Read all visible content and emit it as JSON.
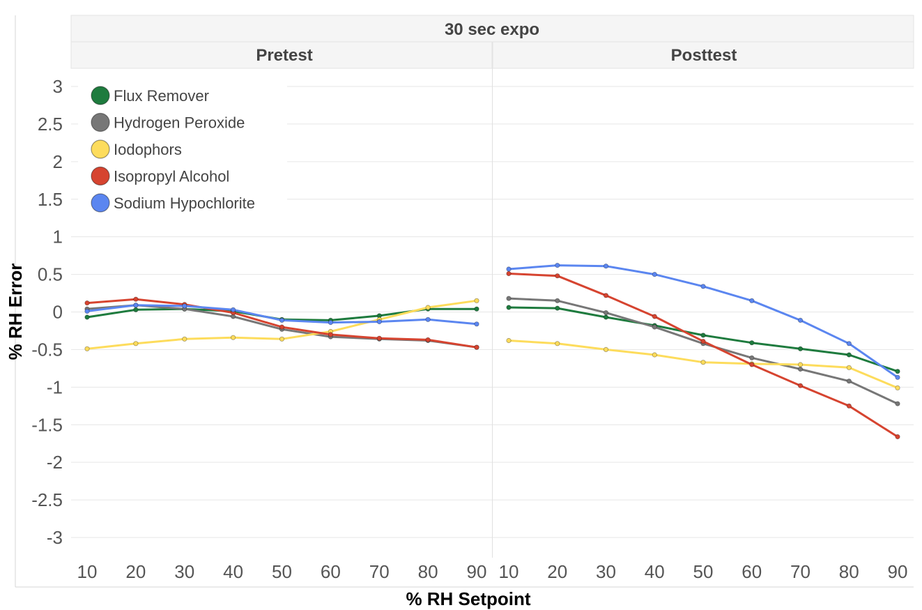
{
  "chart_data": {
    "type": "line",
    "title": "30 sec expo",
    "xlabel": "% RH Setpoint",
    "ylabel": "% RH Error",
    "ylim": [
      -3.25,
      3.25
    ],
    "yticks": [
      3,
      2.5,
      2,
      1.5,
      1,
      0.5,
      0,
      -0.5,
      -1,
      -1.5,
      -2,
      -2.5,
      -3
    ],
    "ytick_labels": [
      "3",
      "2.5",
      "2",
      "1.5",
      "1",
      "0.5",
      "0",
      "-0.5",
      "-1",
      "-1.5",
      "-2",
      "-2.5",
      "-3"
    ],
    "x": [
      10,
      20,
      30,
      40,
      50,
      60,
      70,
      80,
      90
    ],
    "grid": true,
    "legend_position": "top-left",
    "panels": [
      {
        "name": "Pretest",
        "series": [
          {
            "name": "Flux Remover",
            "color": "#1e7b3e",
            "values": [
              -0.07,
              0.03,
              0.04,
              0.01,
              -0.1,
              -0.11,
              -0.05,
              0.04,
              0.04
            ]
          },
          {
            "name": "Hydrogen Peroxide",
            "color": "#777777",
            "values": [
              0.04,
              0.09,
              0.04,
              -0.06,
              -0.23,
              -0.33,
              -0.36,
              -0.38,
              -0.47
            ]
          },
          {
            "name": "Iodophors",
            "color": "#fddc5c",
            "values": [
              -0.49,
              -0.42,
              -0.36,
              -0.34,
              -0.36,
              -0.26,
              -0.1,
              0.06,
              0.15
            ]
          },
          {
            "name": "Isopropyl Alcohol",
            "color": "#d64430",
            "values": [
              0.12,
              0.17,
              0.1,
              -0.01,
              -0.2,
              -0.3,
              -0.35,
              -0.37,
              -0.47
            ]
          },
          {
            "name": "Sodium Hypochlorite",
            "color": "#5b86f0",
            "values": [
              0.01,
              0.09,
              0.08,
              0.03,
              -0.11,
              -0.14,
              -0.13,
              -0.1,
              -0.16
            ]
          }
        ]
      },
      {
        "name": "Posttest",
        "series": [
          {
            "name": "Flux Remover",
            "color": "#1e7b3e",
            "values": [
              0.06,
              0.05,
              -0.07,
              -0.18,
              -0.31,
              -0.41,
              -0.49,
              -0.57,
              -0.79
            ]
          },
          {
            "name": "Hydrogen Peroxide",
            "color": "#777777",
            "values": [
              0.18,
              0.15,
              -0.01,
              -0.2,
              -0.42,
              -0.61,
              -0.76,
              -0.92,
              -1.22
            ]
          },
          {
            "name": "Iodophors",
            "color": "#fddc5c",
            "values": [
              -0.38,
              -0.42,
              -0.5,
              -0.57,
              -0.67,
              -0.69,
              -0.7,
              -0.74,
              -1.01
            ]
          },
          {
            "name": "Isopropyl Alcohol",
            "color": "#d64430",
            "values": [
              0.51,
              0.48,
              0.22,
              -0.06,
              -0.39,
              -0.7,
              -0.98,
              -1.25,
              -1.66
            ]
          },
          {
            "name": "Sodium Hypochlorite",
            "color": "#5b86f0",
            "values": [
              0.57,
              0.62,
              0.61,
              0.5,
              0.34,
              0.15,
              -0.11,
              -0.42,
              -0.87
            ]
          }
        ]
      }
    ]
  }
}
